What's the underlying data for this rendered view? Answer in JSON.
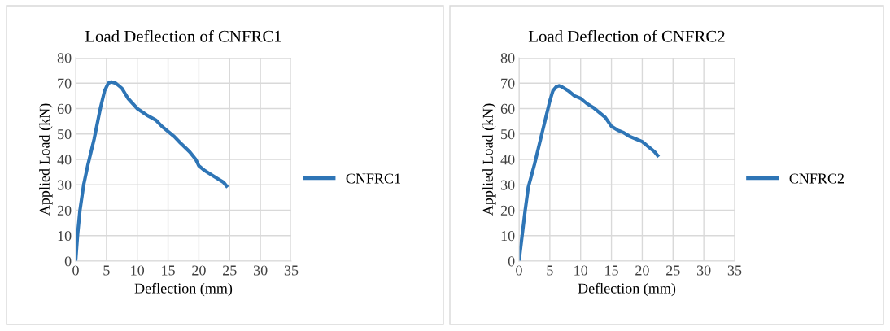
{
  "chart_data": [
    {
      "type": "line",
      "title": "Load Deflection of CNFRC1",
      "xlabel": "Deflection (mm)",
      "ylabel": "Applied Load (kN)",
      "xlim": [
        0,
        35
      ],
      "xticks": [
        0,
        5,
        10,
        15,
        20,
        25,
        30,
        35
      ],
      "ylim": [
        0,
        80
      ],
      "yticks": [
        0,
        10,
        20,
        30,
        40,
        50,
        60,
        70,
        80
      ],
      "grid": true,
      "legend": "right",
      "marker": "none",
      "line_style": "solid",
      "series": [
        {
          "name": "CNFRC1",
          "color": "#2e75b6",
          "x": [
            0,
            0.3,
            0.7,
            1.3,
            2,
            3,
            4,
            4.7,
            5.3,
            5.8,
            6.5,
            7.5,
            8.5,
            10,
            11.5,
            13,
            14,
            15,
            16,
            17,
            18.5,
            19.5,
            20,
            21,
            22,
            23,
            24,
            24.5
          ],
          "values": [
            0,
            10,
            20,
            30,
            38,
            48,
            60,
            67,
            70,
            70.5,
            70,
            68,
            64,
            60,
            57.5,
            55.5,
            53,
            51,
            49,
            46.5,
            43,
            40,
            37.5,
            35.5,
            34,
            32.5,
            31,
            29.5
          ]
        }
      ]
    },
    {
      "type": "line",
      "title": "Load Deflection of CNFRC2",
      "xlabel": "Deflection (mm)",
      "ylabel": "Applied Load (kN)",
      "xlim": [
        0,
        35
      ],
      "xticks": [
        0,
        5,
        10,
        15,
        20,
        25,
        30,
        35
      ],
      "ylim": [
        0,
        80
      ],
      "yticks": [
        0,
        10,
        20,
        30,
        40,
        50,
        60,
        70,
        80
      ],
      "grid": true,
      "legend": "right",
      "marker": "none",
      "line_style": "solid",
      "series": [
        {
          "name": "CNFRC2",
          "color": "#2e75b6",
          "x": [
            0,
            0.5,
            1,
            1.5,
            2.5,
            3.5,
            4.5,
            5,
            5.5,
            6,
            6.5,
            7,
            8,
            9,
            10,
            11,
            12,
            13,
            14,
            15,
            16,
            17,
            18,
            19,
            20,
            21,
            22,
            22.5
          ],
          "values": [
            0,
            10,
            20,
            29,
            38,
            48,
            58,
            63,
            67,
            68.5,
            69,
            68.5,
            67,
            65,
            64,
            62,
            60.5,
            58.5,
            56.5,
            53,
            51.5,
            50.5,
            49,
            48,
            47,
            45,
            43,
            41.5
          ]
        }
      ]
    }
  ]
}
